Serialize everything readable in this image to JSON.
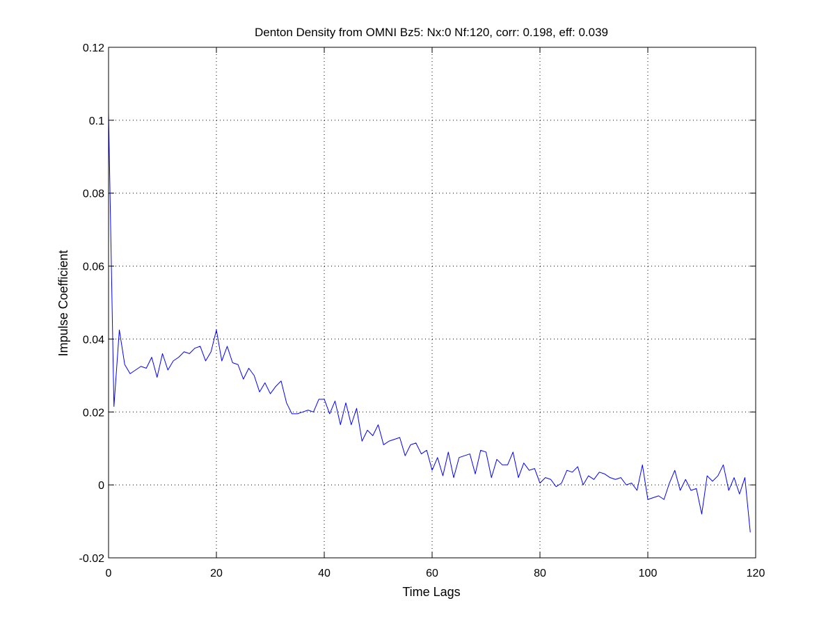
{
  "chart_data": {
    "type": "line",
    "title": "Denton Density from OMNI Bz5: Nx:0 Nf:120, corr: 0.198, eff: 0.039",
    "xlabel": "Time Lags",
    "ylabel": "Impulse Coefficient",
    "xlim": [
      0,
      120
    ],
    "ylim": [
      -0.02,
      0.12
    ],
    "xticks": [
      0,
      20,
      40,
      60,
      80,
      100,
      120
    ],
    "xtick_labels": [
      "0",
      "20",
      "40",
      "60",
      "80",
      "100",
      "120"
    ],
    "yticks": [
      -0.02,
      0,
      0.02,
      0.04,
      0.06,
      0.08,
      0.1,
      0.12
    ],
    "ytick_labels": [
      "-0.02",
      "0",
      "0.02",
      "0.04",
      "0.06",
      "0.08",
      "0.1",
      "0.12"
    ],
    "grid": true,
    "line_color": "#0000ff",
    "series": [
      {
        "x": [
          0,
          1,
          2,
          3,
          4,
          5,
          6,
          7,
          8,
          9,
          10,
          11,
          12,
          13,
          14,
          15,
          16,
          17,
          18,
          19,
          20,
          21,
          22,
          23,
          24,
          25,
          26,
          27,
          28,
          29,
          30,
          31,
          32,
          33,
          34,
          35,
          36,
          37,
          38,
          39,
          40,
          41,
          42,
          43,
          44,
          45,
          46,
          47,
          48,
          49,
          50,
          51,
          52,
          53,
          54,
          55,
          56,
          57,
          58,
          59,
          60,
          61,
          62,
          63,
          64,
          65,
          66,
          67,
          68,
          69,
          70,
          71,
          72,
          73,
          74,
          75,
          76,
          77,
          78,
          79,
          80,
          81,
          82,
          83,
          84,
          85,
          86,
          87,
          88,
          89,
          90,
          91,
          92,
          93,
          94,
          95,
          96,
          97,
          98,
          99,
          100,
          101,
          102,
          103,
          104,
          105,
          106,
          107,
          108,
          109,
          110,
          111,
          112,
          113,
          114,
          115,
          116,
          117,
          118,
          119
        ],
        "y": [
          0.102,
          0.0215,
          0.0425,
          0.033,
          0.0305,
          0.0315,
          0.0325,
          0.032,
          0.035,
          0.0295,
          0.036,
          0.0315,
          0.034,
          0.035,
          0.0365,
          0.036,
          0.0375,
          0.038,
          0.034,
          0.0365,
          0.0425,
          0.034,
          0.038,
          0.0335,
          0.033,
          0.029,
          0.032,
          0.03,
          0.0255,
          0.028,
          0.025,
          0.027,
          0.0285,
          0.0225,
          0.0195,
          0.0195,
          0.02,
          0.0205,
          0.02,
          0.0235,
          0.0235,
          0.0195,
          0.023,
          0.0165,
          0.0225,
          0.0165,
          0.021,
          0.012,
          0.015,
          0.0135,
          0.0165,
          0.011,
          0.012,
          0.0125,
          0.013,
          0.008,
          0.011,
          0.0115,
          0.0085,
          0.0095,
          0.004,
          0.0075,
          0.0025,
          0.009,
          0.002,
          0.0075,
          0.008,
          0.0085,
          0.003,
          0.0095,
          0.009,
          0.002,
          0.007,
          0.0055,
          0.0055,
          0.009,
          0.002,
          0.006,
          0.004,
          0.0045,
          0.0005,
          0.002,
          0.0015,
          -0.0005,
          0.0005,
          0.004,
          0.0035,
          0.005,
          0.0,
          0.0025,
          0.0015,
          0.0035,
          0.003,
          0.002,
          0.0015,
          0.002,
          0.0,
          0.0005,
          -0.0015,
          0.0055,
          -0.004,
          -0.0035,
          -0.003,
          -0.004,
          0.0005,
          0.004,
          -0.0015,
          0.0015,
          -0.0015,
          -0.001,
          -0.008,
          0.0025,
          0.001,
          0.0025,
          0.0055,
          -0.0015,
          0.002,
          -0.0025,
          0.002,
          -0.013
        ]
      }
    ]
  }
}
